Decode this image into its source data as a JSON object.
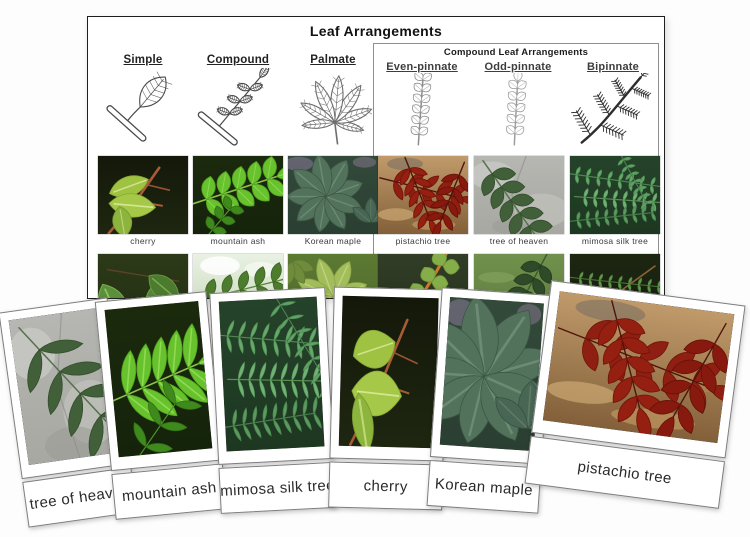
{
  "page": {
    "background": "#fdfdfd"
  },
  "chart": {
    "title": "Leaf Arrangements",
    "simple_columns": [
      {
        "label": "Simple",
        "icon": "simple-leaf-drawing",
        "drawing": "simple"
      },
      {
        "label": "Compound",
        "icon": "compound-leaf-drawing",
        "drawing": "compound"
      },
      {
        "label": "Palmate",
        "icon": "palmate-leaf-drawing",
        "drawing": "palmate"
      }
    ],
    "compound_box": {
      "title": "Compound Leaf Arrangements",
      "columns": [
        {
          "label": "Even-pinnate",
          "icon": "even-pinnate-drawing",
          "drawing": "even-pinnate"
        },
        {
          "label": "Odd-pinnate",
          "icon": "odd-pinnate-drawing",
          "drawing": "odd-pinnate"
        },
        {
          "label": "Bipinnate",
          "icon": "bipinnate-drawing",
          "drawing": "bipinnate"
        }
      ]
    },
    "photo_row_labeled": [
      {
        "label": "cherry",
        "variant": "cherry"
      },
      {
        "label": "mountain ash",
        "variant": "mountain-ash"
      },
      {
        "label": "Korean maple",
        "variant": "korean-maple"
      },
      {
        "label": "pistachio tree",
        "variant": "pistachio"
      },
      {
        "label": "tree of heaven",
        "variant": "tree-of-heaven"
      },
      {
        "label": "mimosa silk tree",
        "variant": "mimosa"
      }
    ],
    "photo_row_unlabeled": [
      {
        "variant": "cherry-2"
      },
      {
        "variant": "mountain-ash-2"
      },
      {
        "variant": "korean-maple-2"
      },
      {
        "variant": "pistachio-2"
      },
      {
        "variant": "tree-of-heaven-2"
      },
      {
        "variant": "mimosa-2"
      }
    ]
  },
  "cards": [
    {
      "label": "tree of heaven",
      "variant": "tree-of-heaven",
      "orientation": "portrait"
    },
    {
      "label": "mountain ash",
      "variant": "mountain-ash",
      "orientation": "portrait"
    },
    {
      "label": "mimosa silk tree",
      "variant": "mimosa",
      "orientation": "portrait"
    },
    {
      "label": "cherry",
      "variant": "cherry",
      "orientation": "portrait"
    },
    {
      "label": "Korean maple",
      "variant": "korean-maple",
      "orientation": "portrait"
    },
    {
      "label": "pistachio tree",
      "variant": "pistachio",
      "orientation": "landscape"
    }
  ],
  "colors": {
    "chart_border": "#1f1f1f",
    "box_border": "#8f8f8f",
    "card_border": "#7d7d7d",
    "label_text": "#2a2a2a",
    "pistachio_red": "#8e1f12",
    "bright_green": "#68c22e"
  }
}
